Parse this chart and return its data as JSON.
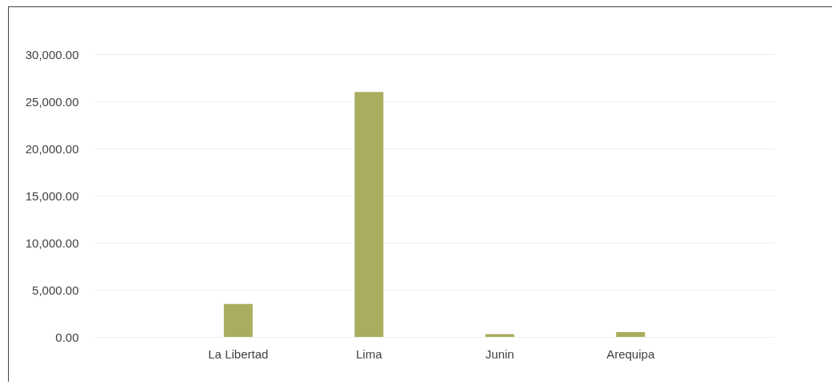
{
  "chart_data": {
    "type": "bar",
    "categories": [
      "La Libertad",
      "Lima",
      "Junin",
      "Arequipa"
    ],
    "values": [
      3500,
      26000,
      300,
      500
    ],
    "color": "#a9ad5e",
    "ylim": [
      0,
      30000
    ],
    "yticks": [
      {
        "value": 0,
        "label": "0.00"
      },
      {
        "value": 5000,
        "label": "5,000.00"
      },
      {
        "value": 10000,
        "label": "10,000.00"
      },
      {
        "value": 15000,
        "label": "15,000.00"
      },
      {
        "value": 20000,
        "label": "20,000.00"
      },
      {
        "value": 25000,
        "label": "25,000.00"
      },
      {
        "value": 30000,
        "label": "30,000.00"
      }
    ],
    "grid": "y"
  }
}
